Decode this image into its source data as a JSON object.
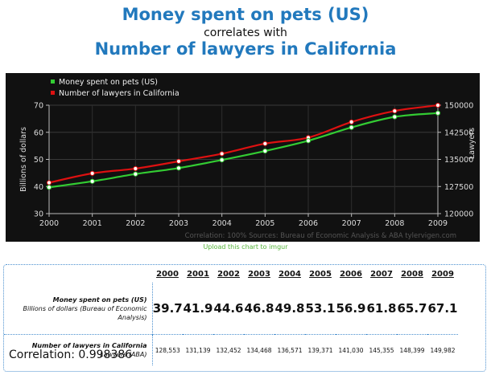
{
  "header": {
    "title_line1": "Money spent on pets (US)",
    "title_mid": "correlates with",
    "title_line2": "Number of lawyers in California"
  },
  "chart_data": {
    "type": "line",
    "x": [
      "2000",
      "2001",
      "2002",
      "2003",
      "2004",
      "2005",
      "2006",
      "2007",
      "2008",
      "2009"
    ],
    "series": [
      {
        "name": "Money spent on pets (US)",
        "axis": "left",
        "color": "#33cc33",
        "values": [
          39.7,
          41.9,
          44.6,
          46.8,
          49.8,
          53.1,
          56.9,
          61.8,
          65.7,
          67.1
        ]
      },
      {
        "name": "Number of lawyers in California",
        "axis": "right",
        "color": "#dd1111",
        "values": [
          128553,
          131139,
          132452,
          134468,
          136571,
          139371,
          141030,
          145355,
          148399,
          149982
        ]
      }
    ],
    "ylabel_left": "Billions of dollars",
    "ylabel_right": "Lawyers",
    "ylim_left": [
      30,
      70
    ],
    "ylim_right": [
      120000,
      150000
    ],
    "yticks_left": [
      "30",
      "40",
      "50",
      "60",
      "70"
    ],
    "yticks_right": [
      "120000",
      "127500",
      "135000",
      "142500",
      "150000"
    ],
    "legend": "top-left",
    "background": "#111111",
    "footer_text": "Correlation: 100%    Sources: Bureau of Economic Analysis & ABA    tylervigen.com"
  },
  "upload_link": "Upload this chart to imgur",
  "table": {
    "years": [
      "2000",
      "2001",
      "2002",
      "2003",
      "2004",
      "2005",
      "2006",
      "2007",
      "2008",
      "2009"
    ],
    "row1_label_main": "Money spent on pets (US)",
    "row1_label_sub": "Billions of dollars (Bureau of Economic Analysis)",
    "row1_values": [
      "39.7",
      "41.9",
      "44.6",
      "46.8",
      "49.8",
      "53.1",
      "56.9",
      "61.8",
      "65.7",
      "67.1"
    ],
    "row2_label_main": "Number of lawyers in California",
    "row2_label_sub": "Lawyers (ABA)",
    "row2_values": [
      "128,553",
      "131,139",
      "132,452",
      "134,468",
      "136,571",
      "139,371",
      "141,030",
      "145,355",
      "148,399",
      "149,982"
    ],
    "correlation": "Correlation: 0.998386"
  }
}
